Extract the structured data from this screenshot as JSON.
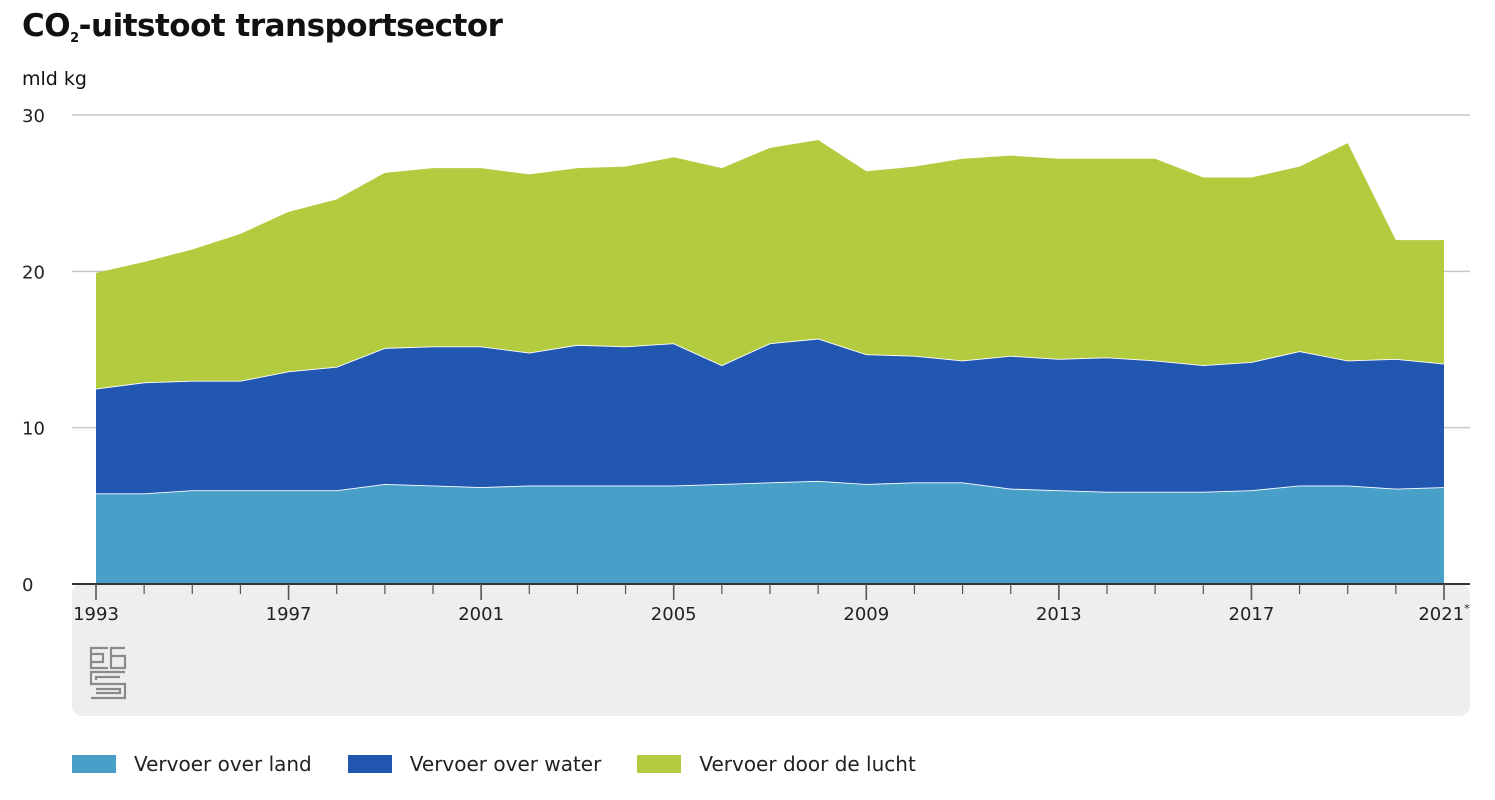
{
  "title": {
    "prefix": "CO",
    "subscript": "2",
    "suffix": "-uitstoot transportsector"
  },
  "unit_label": "mld kg",
  "logo_text": "cbs",
  "chart_data": {
    "type": "area",
    "stacked": true,
    "x": [
      1993,
      1994,
      1995,
      1996,
      1997,
      1998,
      1999,
      2000,
      2001,
      2002,
      2003,
      2004,
      2005,
      2006,
      2007,
      2008,
      2009,
      2010,
      2011,
      2012,
      2013,
      2014,
      2015,
      2016,
      2017,
      2018,
      2019,
      2020,
      2021
    ],
    "x_ticks": [
      "1993",
      "1997",
      "2001",
      "2005",
      "2009",
      "2013",
      "2017",
      "2021*"
    ],
    "y_ticks": [
      "0",
      "10",
      "20",
      "30"
    ],
    "ylim": [
      0,
      30
    ],
    "grid": true,
    "legend": "bottom",
    "series": [
      {
        "name": "Vervoer over land",
        "color": "#48a0c8",
        "values": [
          5.8,
          5.8,
          6.0,
          6.0,
          6.0,
          6.0,
          6.4,
          6.3,
          6.2,
          6.3,
          6.3,
          6.3,
          6.3,
          6.4,
          6.5,
          6.6,
          6.4,
          6.5,
          6.5,
          6.1,
          6.0,
          5.9,
          5.9,
          5.9,
          6.0,
          6.3,
          6.3,
          6.1,
          6.2
        ]
      },
      {
        "name": "Vervoer over water",
        "color": "#2257b1",
        "values": [
          6.7,
          7.1,
          7.0,
          7.0,
          7.6,
          7.9,
          8.7,
          8.9,
          9.0,
          8.5,
          9.0,
          8.9,
          9.1,
          7.6,
          8.9,
          9.1,
          8.3,
          8.1,
          7.8,
          8.5,
          8.4,
          8.6,
          8.4,
          8.1,
          8.2,
          8.6,
          8.0,
          8.3,
          7.9
        ]
      },
      {
        "name": "Vervoer door de lucht",
        "color": "#b3cb3f",
        "values": [
          7.4,
          7.7,
          8.4,
          9.4,
          10.2,
          10.7,
          11.2,
          11.4,
          11.4,
          11.4,
          11.3,
          11.5,
          11.9,
          12.6,
          12.5,
          12.7,
          11.7,
          12.1,
          12.9,
          12.8,
          12.8,
          12.7,
          12.9,
          12.0,
          11.8,
          11.8,
          13.9,
          7.6,
          7.9
        ]
      }
    ]
  }
}
